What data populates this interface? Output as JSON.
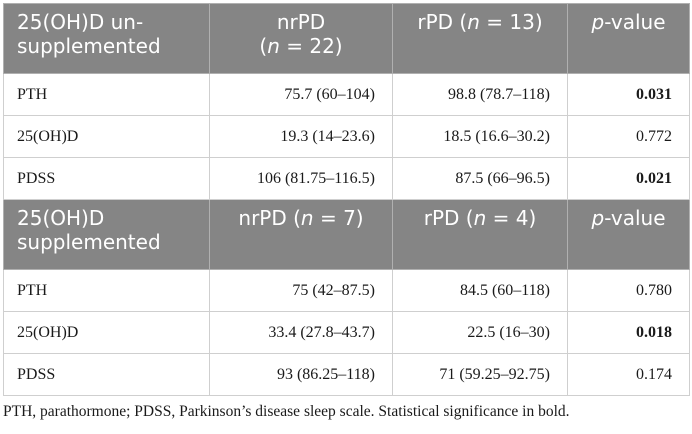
{
  "sections": [
    {
      "header": {
        "label_line1": "25(OH)D un-",
        "label_line2": "supplemented",
        "col2_line1": "nrPD",
        "col2_line2_pre": "(",
        "col2_line2_n": "n",
        "col2_line2_post": " = 22)",
        "col3_pre": "rPD (",
        "col3_n": "n",
        "col3_post": " = 13)",
        "col4_p": "p",
        "col4_rest": "-value"
      },
      "rows": [
        {
          "label": "PTH",
          "nrpd": "75.7 (60–104)",
          "rpd": "98.8 (78.7–118)",
          "p": "0.031",
          "p_bold": true
        },
        {
          "label": "25(OH)D",
          "nrpd": "19.3 (14–23.6)",
          "rpd": "18.5 (16.6–30.2)",
          "p": "0.772",
          "p_bold": false
        },
        {
          "label": "PDSS",
          "nrpd": "106 (81.75–116.5)",
          "rpd": "87.5 (66–96.5)",
          "p": "0.021",
          "p_bold": true
        }
      ]
    },
    {
      "header": {
        "label_line1": "25(OH)D",
        "label_line2": "supplemented",
        "col2_pre": "nrPD (",
        "col2_n": "n",
        "col2_post": " = 7)",
        "col3_pre": "rPD (",
        "col3_n": "n",
        "col3_post": " = 4)",
        "col4_p": "p",
        "col4_rest": "-value"
      },
      "rows": [
        {
          "label": "PTH",
          "nrpd": "75 (42–87.5)",
          "rpd": "84.5 (60–118)",
          "p": "0.780",
          "p_bold": false
        },
        {
          "label": "25(OH)D",
          "nrpd": "33.4 (27.8–43.7)",
          "rpd": "22.5 (16–30)",
          "p": "0.018",
          "p_bold": true
        },
        {
          "label": "PDSS",
          "nrpd": "93 (86.25–118)",
          "rpd": "71 (59.25–92.75)",
          "p": "0.174",
          "p_bold": false
        }
      ]
    }
  ],
  "footnote": "PTH, parathormone; PDSS, Parkinson’s disease sleep scale. Statistical significance in bold."
}
